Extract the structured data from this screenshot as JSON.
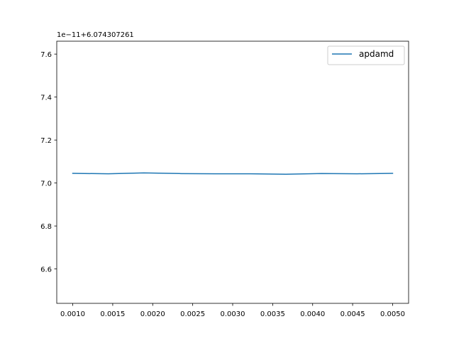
{
  "chart_data": {
    "type": "line",
    "title": "",
    "xlabel": "",
    "ylabel": "",
    "y_offset_text": "1e−11+6.074307261",
    "xlim": [
      0.0008,
      0.0052
    ],
    "ylim": [
      6.44,
      7.66
    ],
    "x_ticks": [
      0.001,
      0.0015,
      0.002,
      0.0025,
      0.003,
      0.0035,
      0.004,
      0.0045,
      0.005
    ],
    "x_tick_labels": [
      "0.0010",
      "0.0015",
      "0.0020",
      "0.0025",
      "0.0030",
      "0.0035",
      "0.0040",
      "0.0045",
      "0.0050"
    ],
    "y_ticks": [
      6.6,
      6.8,
      7.0,
      7.2,
      7.4,
      7.6
    ],
    "y_tick_labels": [
      "6.6",
      "6.8",
      "7.0",
      "7.2",
      "7.4",
      "7.6"
    ],
    "grid": false,
    "legend_position": "top-right",
    "series": [
      {
        "name": "apdamd",
        "color": "#1f77b4",
        "x": [
          0.001,
          0.001444,
          0.001889,
          0.002333,
          0.002778,
          0.003222,
          0.003667,
          0.004111,
          0.004556,
          0.005
        ],
        "y": [
          7.045,
          7.043,
          7.047,
          7.044,
          7.043,
          7.043,
          7.041,
          7.044,
          7.043,
          7.045
        ]
      }
    ]
  }
}
